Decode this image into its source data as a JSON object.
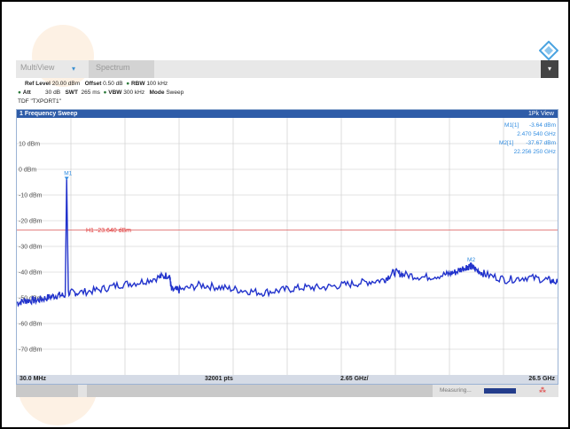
{
  "tabs": {
    "multiview": "MultiView",
    "spectrum": "Spectrum"
  },
  "settings": {
    "ref_level_label": "Ref Level",
    "ref_level": "20.00 dBm",
    "offset_label": "Offset",
    "offset": "0.50 dB",
    "rbw_label": "RBW",
    "rbw": "100 kHz",
    "att_label": "Att",
    "att": "30 dB",
    "swt_label": "SWT",
    "swt": "265 ms",
    "vbw_label": "VBW",
    "vbw": "300 kHz",
    "mode_label": "Mode",
    "mode": "Sweep",
    "tdf": "TDF \"TXPORT1\""
  },
  "window": {
    "title": "1 Frequency Sweep",
    "trace": "1Pk View"
  },
  "markers": {
    "m1_label": "M1[1]",
    "m1_level": "-3.64 dBm",
    "m1_freq": "2.470 540 GHz",
    "m2_label": "M2[1]",
    "m2_level": "-37.67 dBm",
    "m2_freq": "22.256 250 GHz",
    "m1_tag": "M1",
    "m2_tag": "M2"
  },
  "threshold": {
    "label": "H1 -23.640 dBm"
  },
  "axis": {
    "start": "30.0 MHz",
    "points": "32001 pts",
    "span": "2.65 GHz/",
    "stop": "26.5 GHz"
  },
  "status": {
    "measuring": "Measuring..."
  },
  "chart_data": {
    "type": "line",
    "x_unit": "GHz",
    "y_unit": "dBm",
    "xlim": [
      0.03,
      26.5
    ],
    "ylim": [
      -80,
      20
    ],
    "ytick_labels": [
      "10 dBm",
      "0 dBm",
      "-10 dBm",
      "-20 dBm",
      "-30 dBm",
      "-40 dBm",
      "-50 dBm",
      "-60 dBm",
      "-70 dBm"
    ],
    "series": [
      {
        "x": [
          0.03,
          0.5,
          1.0,
          1.5,
          2.0,
          2.4,
          2.47,
          2.55,
          3.0,
          4.0,
          5.0,
          6.0,
          7.0,
          7.5,
          7.6,
          8.0,
          9.0,
          10.0,
          11.0,
          12.0,
          13.0,
          14.0,
          15.0,
          16.0,
          17.0,
          18.0,
          18.5,
          19.0,
          20.0,
          21.0,
          21.5,
          22.0,
          22.25,
          22.5,
          23.0,
          24.0,
          25.0,
          26.0,
          26.5
        ],
        "y": [
          -52,
          -51,
          -51,
          -50,
          -49,
          -49,
          -3.64,
          -48,
          -48,
          -47,
          -45,
          -44,
          -42,
          -41,
          -47,
          -47,
          -45,
          -46,
          -47,
          -48,
          -47,
          -46,
          -46,
          -45,
          -44,
          -43,
          -40,
          -41,
          -42,
          -41,
          -40,
          -38,
          -37.67,
          -39,
          -41,
          -43,
          -42,
          -43,
          -44
        ]
      }
    ],
    "threshold_dbm": -23.64
  }
}
